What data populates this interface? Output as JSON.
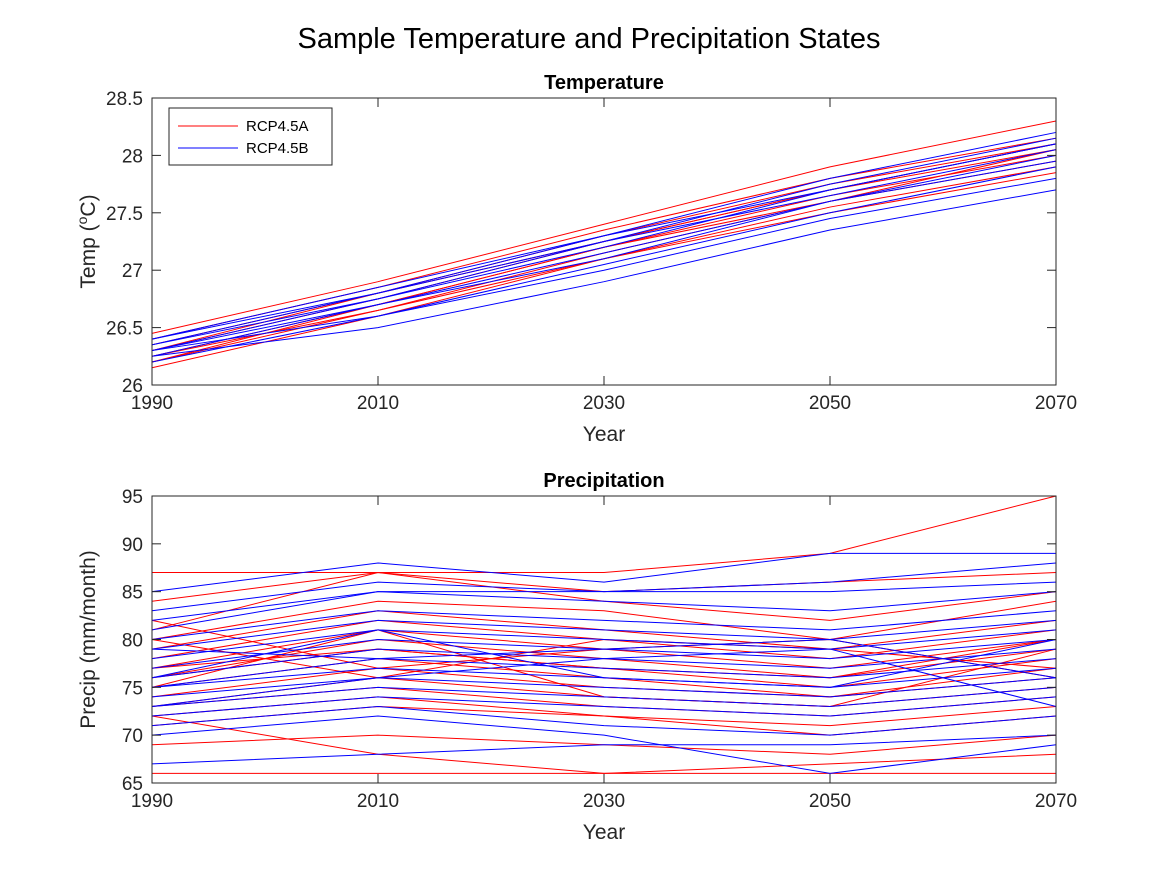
{
  "figure": {
    "title": "Sample Temperature and Precipitation States",
    "colors": {
      "RCP4.5A": "#ff0000",
      "RCP4.5B": "#0000ff"
    }
  },
  "chart_data": [
    {
      "type": "line",
      "title": "Temperature",
      "xlabel": "Year",
      "ylabel": "Temp (",
      "ylabel_sup": "o",
      "ylabel_suffix": "C)",
      "xlim": [
        1990,
        2070
      ],
      "ylim": [
        26,
        28.5
      ],
      "x": [
        1990,
        2010,
        2030,
        2050,
        2070
      ],
      "xticks": [
        "1990",
        "2010",
        "2030",
        "2050",
        "2070"
      ],
      "yticks": [
        "26",
        "26.5",
        "27",
        "27.5",
        "28",
        "28.5"
      ],
      "legend": {
        "position": "top-left",
        "entries": [
          "RCP4.5A",
          "RCP4.5B"
        ]
      },
      "grid": false,
      "series": [
        {
          "group": "RCP4.5A",
          "values": [
            26.45,
            26.9,
            27.4,
            27.9,
            28.3
          ]
        },
        {
          "group": "RCP4.5A",
          "values": [
            26.4,
            26.85,
            27.35,
            27.8,
            28.15
          ]
        },
        {
          "group": "RCP4.5A",
          "values": [
            26.35,
            26.8,
            27.3,
            27.75,
            28.1
          ]
        },
        {
          "group": "RCP4.5A",
          "values": [
            26.3,
            26.75,
            27.25,
            27.7,
            28.05
          ]
        },
        {
          "group": "RCP4.5A",
          "values": [
            26.25,
            26.7,
            27.2,
            27.65,
            28.0
          ]
        },
        {
          "group": "RCP4.5A",
          "values": [
            26.2,
            26.65,
            27.15,
            27.6,
            27.95
          ]
        },
        {
          "group": "RCP4.5A",
          "values": [
            26.15,
            26.6,
            27.1,
            27.55,
            27.9
          ]
        },
        {
          "group": "RCP4.5A",
          "values": [
            26.2,
            26.7,
            27.2,
            27.6,
            28.05
          ]
        },
        {
          "group": "RCP4.5A",
          "values": [
            26.3,
            26.8,
            27.25,
            27.7,
            28.1
          ]
        },
        {
          "group": "RCP4.5A",
          "values": [
            26.25,
            26.65,
            27.1,
            27.5,
            27.85
          ]
        },
        {
          "group": "RCP4.5B",
          "values": [
            26.4,
            26.85,
            27.3,
            27.8,
            28.2
          ]
        },
        {
          "group": "RCP4.5B",
          "values": [
            26.35,
            26.8,
            27.25,
            27.75,
            28.15
          ]
        },
        {
          "group": "RCP4.5B",
          "values": [
            26.3,
            26.75,
            27.2,
            27.7,
            28.1
          ]
        },
        {
          "group": "RCP4.5B",
          "values": [
            26.25,
            26.7,
            27.15,
            27.6,
            28.0
          ]
        },
        {
          "group": "RCP4.5B",
          "values": [
            26.2,
            26.6,
            27.05,
            27.5,
            27.9
          ]
        },
        {
          "group": "RCP4.5B",
          "values": [
            26.3,
            26.6,
            27.0,
            27.45,
            27.8
          ]
        },
        {
          "group": "RCP4.5B",
          "values": [
            26.25,
            26.5,
            26.9,
            27.35,
            27.7
          ]
        },
        {
          "group": "RCP4.5B",
          "values": [
            26.35,
            26.75,
            27.25,
            27.65,
            28.05
          ]
        },
        {
          "group": "RCP4.5B",
          "values": [
            26.4,
            26.8,
            27.3,
            27.7,
            28.1
          ]
        },
        {
          "group": "RCP4.5B",
          "values": [
            26.3,
            26.7,
            27.1,
            27.6,
            27.95
          ]
        }
      ]
    },
    {
      "type": "line",
      "title": "Precipitation",
      "xlabel": "Year",
      "ylabel": "Precip (mm/month)",
      "xlim": [
        1990,
        2070
      ],
      "ylim": [
        65,
        95
      ],
      "x": [
        1990,
        2010,
        2030,
        2050,
        2070
      ],
      "xticks": [
        "1990",
        "2010",
        "2030",
        "2050",
        "2070"
      ],
      "yticks": [
        "65",
        "70",
        "75",
        "80",
        "85",
        "90",
        "95"
      ],
      "grid": false,
      "series": [
        {
          "group": "RCP4.5A",
          "values": [
            87,
            87,
            87,
            89,
            95
          ]
        },
        {
          "group": "RCP4.5A",
          "values": [
            84,
            87,
            85,
            86,
            87
          ]
        },
        {
          "group": "RCP4.5A",
          "values": [
            81,
            87,
            84,
            82,
            85
          ]
        },
        {
          "group": "RCP4.5A",
          "values": [
            80,
            84,
            83,
            80,
            84
          ]
        },
        {
          "group": "RCP4.5A",
          "values": [
            79,
            83,
            81,
            79,
            82
          ]
        },
        {
          "group": "RCP4.5A",
          "values": [
            78,
            82,
            80,
            78,
            81
          ]
        },
        {
          "group": "RCP4.5A",
          "values": [
            77,
            81,
            79,
            77,
            80
          ]
        },
        {
          "group": "RCP4.5A",
          "values": [
            76,
            80,
            78,
            76,
            79
          ]
        },
        {
          "group": "RCP4.5A",
          "values": [
            76,
            79,
            77,
            75,
            78
          ]
        },
        {
          "group": "RCP4.5A",
          "values": [
            75,
            78,
            76,
            74,
            77
          ]
        },
        {
          "group": "RCP4.5A",
          "values": [
            74,
            77,
            75,
            74,
            76
          ]
        },
        {
          "group": "RCP4.5A",
          "values": [
            73,
            76,
            74,
            73,
            75
          ]
        },
        {
          "group": "RCP4.5A",
          "values": [
            73,
            75,
            73,
            72,
            74
          ]
        },
        {
          "group": "RCP4.5A",
          "values": [
            72,
            74,
            72,
            71,
            73
          ]
        },
        {
          "group": "RCP4.5A",
          "values": [
            71,
            73,
            72,
            70,
            72
          ]
        },
        {
          "group": "RCP4.5A",
          "values": [
            69,
            70,
            69,
            68,
            70
          ]
        },
        {
          "group": "RCP4.5A",
          "values": [
            72,
            68,
            66,
            67,
            68
          ]
        },
        {
          "group": "RCP4.5A",
          "values": [
            77,
            79,
            77,
            76,
            80
          ]
        },
        {
          "group": "RCP4.5A",
          "values": [
            80,
            76,
            80,
            79,
            77
          ]
        },
        {
          "group": "RCP4.5A",
          "values": [
            75,
            81,
            74,
            73,
            79
          ]
        },
        {
          "group": "RCP4.5A",
          "values": [
            82,
            77,
            79,
            80,
            76
          ]
        },
        {
          "group": "RCP4.5A",
          "values": [
            66,
            66,
            66,
            66,
            66
          ]
        },
        {
          "group": "RCP4.5B",
          "values": [
            85,
            88,
            86,
            89,
            89
          ]
        },
        {
          "group": "RCP4.5B",
          "values": [
            83,
            86,
            85,
            86,
            88
          ]
        },
        {
          "group": "RCP4.5B",
          "values": [
            82,
            85,
            85,
            85,
            86
          ]
        },
        {
          "group": "RCP4.5B",
          "values": [
            81,
            85,
            84,
            83,
            85
          ]
        },
        {
          "group": "RCP4.5B",
          "values": [
            80,
            83,
            82,
            81,
            83
          ]
        },
        {
          "group": "RCP4.5B",
          "values": [
            79,
            82,
            81,
            80,
            82
          ]
        },
        {
          "group": "RCP4.5B",
          "values": [
            78,
            81,
            80,
            79,
            81
          ]
        },
        {
          "group": "RCP4.5B",
          "values": [
            77,
            80,
            79,
            78,
            80
          ]
        },
        {
          "group": "RCP4.5B",
          "values": [
            76,
            79,
            78,
            77,
            79
          ]
        },
        {
          "group": "RCP4.5B",
          "values": [
            75,
            78,
            77,
            76,
            78
          ]
        },
        {
          "group": "RCP4.5B",
          "values": [
            75,
            77,
            76,
            75,
            77
          ]
        },
        {
          "group": "RCP4.5B",
          "values": [
            74,
            76,
            75,
            74,
            76
          ]
        },
        {
          "group": "RCP4.5B",
          "values": [
            73,
            75,
            74,
            73,
            75
          ]
        },
        {
          "group": "RCP4.5B",
          "values": [
            72,
            74,
            73,
            72,
            74
          ]
        },
        {
          "group": "RCP4.5B",
          "values": [
            71,
            73,
            71,
            70,
            72
          ]
        },
        {
          "group": "RCP4.5B",
          "values": [
            67,
            68,
            69,
            69,
            70
          ]
        },
        {
          "group": "RCP4.5B",
          "values": [
            70,
            72,
            70,
            66,
            69
          ]
        },
        {
          "group": "RCP4.5B",
          "values": [
            79,
            78,
            79,
            80,
            76
          ]
        },
        {
          "group": "RCP4.5B",
          "values": [
            76,
            81,
            76,
            75,
            80
          ]
        },
        {
          "group": "RCP4.5B",
          "values": [
            73,
            76,
            78,
            79,
            73
          ]
        }
      ]
    }
  ]
}
